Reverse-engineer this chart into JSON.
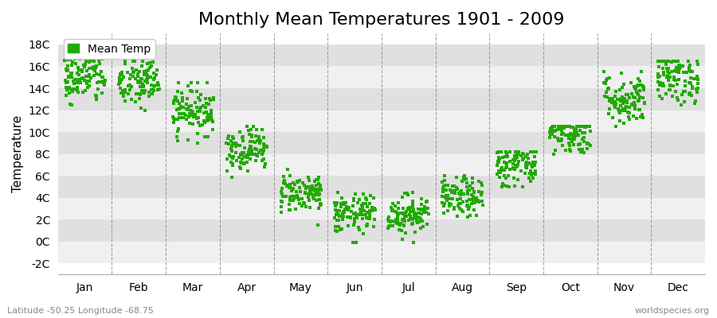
{
  "title": "Monthly Mean Temperatures 1901 - 2009",
  "ylabel": "Temperature",
  "xlabel": "",
  "subtitle_left": "Latitude -50.25 Longitude -68.75",
  "subtitle_right": "worldspecies.org",
  "legend_label": "Mean Temp",
  "dot_color": "#22aa00",
  "background_color": "#ffffff",
  "plot_bg_color_light": "#f0f0f0",
  "plot_bg_color_dark": "#e0e0e0",
  "ytick_labels": [
    "-2C",
    "0C",
    "2C",
    "4C",
    "6C",
    "8C",
    "10C",
    "12C",
    "14C",
    "16C",
    "18C"
  ],
  "ytick_values": [
    -2,
    0,
    2,
    4,
    6,
    8,
    10,
    12,
    14,
    16,
    18
  ],
  "ylim": [
    -3,
    19
  ],
  "months": [
    "Jan",
    "Feb",
    "Mar",
    "Apr",
    "May",
    "Jun",
    "Jul",
    "Aug",
    "Sep",
    "Oct",
    "Nov",
    "Dec"
  ],
  "month_means": [
    15.0,
    14.5,
    12.0,
    8.5,
    4.5,
    2.5,
    2.5,
    4.0,
    7.0,
    10.0,
    13.0,
    15.0
  ],
  "month_stds": [
    1.2,
    1.2,
    1.1,
    1.0,
    0.9,
    0.9,
    0.9,
    0.9,
    1.0,
    1.0,
    1.2,
    1.2
  ],
  "month_mins": [
    12.5,
    11.5,
    9.0,
    5.5,
    1.5,
    -1.8,
    -2.3,
    1.5,
    5.0,
    8.0,
    10.5,
    12.5
  ],
  "month_maxs": [
    17.5,
    16.5,
    14.5,
    10.5,
    6.8,
    4.5,
    4.5,
    6.0,
    8.2,
    10.5,
    15.5,
    16.5
  ],
  "n_years": 109,
  "seed": 42,
  "title_fontsize": 16,
  "axis_fontsize": 11,
  "tick_fontsize": 10,
  "marker_size": 4
}
